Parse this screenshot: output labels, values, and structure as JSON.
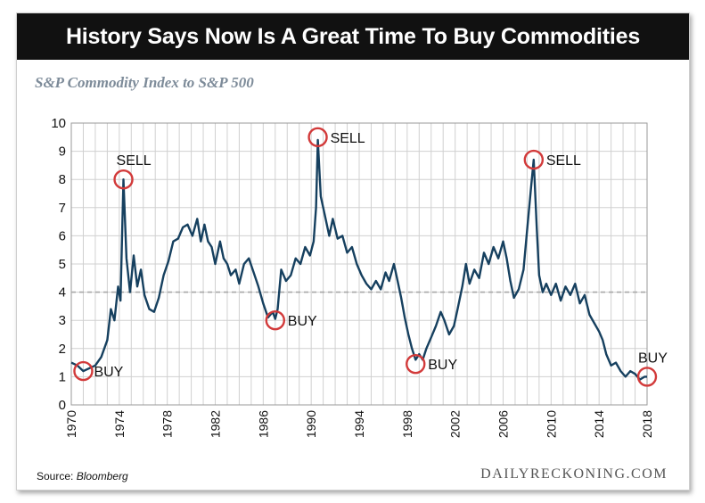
{
  "title": "History Says Now Is A Great Time To Buy Commodities",
  "subtitle": "S&P Commodity Index to S&P 500",
  "source_label": "Source:",
  "source_name": "Bloomberg",
  "brand": "DAILYRECKONING.COM",
  "colors": {
    "line": "#16405f",
    "marker": "#d23a3a",
    "grid": "#d0d0d0",
    "reference": "#a8a8a8",
    "title_bar": "#111111"
  },
  "chart_data": {
    "type": "line",
    "title": "S&P Commodity Index to S&P 500",
    "xlim": [
      1970,
      2018
    ],
    "ylim": [
      0,
      10
    ],
    "x_ticks": [
      1970,
      1974,
      1978,
      1982,
      1986,
      1990,
      1994,
      1998,
      2002,
      2006,
      2010,
      2014,
      2018
    ],
    "y_ticks": [
      0,
      1,
      2,
      3,
      4,
      5,
      6,
      7,
      8,
      9,
      10
    ],
    "grid": true,
    "reference_line": {
      "y": 4,
      "style": "dashed"
    },
    "series": [
      {
        "points": [
          [
            1970.0,
            1.5
          ],
          [
            1970.5,
            1.4
          ],
          [
            1971.0,
            1.2
          ],
          [
            1971.5,
            1.3
          ],
          [
            1972.0,
            1.4
          ],
          [
            1972.5,
            1.7
          ],
          [
            1973.0,
            2.3
          ],
          [
            1973.3,
            3.4
          ],
          [
            1973.6,
            3.0
          ],
          [
            1973.9,
            4.2
          ],
          [
            1974.1,
            3.7
          ],
          [
            1974.35,
            8.0
          ],
          [
            1974.6,
            5.2
          ],
          [
            1974.9,
            4.0
          ],
          [
            1975.2,
            5.3
          ],
          [
            1975.5,
            4.2
          ],
          [
            1975.8,
            4.8
          ],
          [
            1976.1,
            3.9
          ],
          [
            1976.5,
            3.4
          ],
          [
            1976.9,
            3.3
          ],
          [
            1977.3,
            3.8
          ],
          [
            1977.7,
            4.6
          ],
          [
            1978.1,
            5.1
          ],
          [
            1978.5,
            5.8
          ],
          [
            1978.9,
            5.9
          ],
          [
            1979.3,
            6.3
          ],
          [
            1979.7,
            6.4
          ],
          [
            1980.1,
            6.0
          ],
          [
            1980.5,
            6.6
          ],
          [
            1980.8,
            5.8
          ],
          [
            1981.1,
            6.4
          ],
          [
            1981.4,
            5.8
          ],
          [
            1981.7,
            5.6
          ],
          [
            1982.0,
            5.0
          ],
          [
            1982.4,
            5.8
          ],
          [
            1982.7,
            5.2
          ],
          [
            1983.0,
            5.0
          ],
          [
            1983.3,
            4.6
          ],
          [
            1983.7,
            4.8
          ],
          [
            1984.0,
            4.3
          ],
          [
            1984.4,
            5.0
          ],
          [
            1984.8,
            5.2
          ],
          [
            1985.2,
            4.7
          ],
          [
            1985.6,
            4.2
          ],
          [
            1986.0,
            3.6
          ],
          [
            1986.4,
            3.1
          ],
          [
            1986.8,
            3.3
          ],
          [
            1987.0,
            3.05
          ],
          [
            1987.2,
            3.4
          ],
          [
            1987.5,
            4.8
          ],
          [
            1987.9,
            4.4
          ],
          [
            1988.3,
            4.6
          ],
          [
            1988.7,
            5.2
          ],
          [
            1989.1,
            5.0
          ],
          [
            1989.5,
            5.6
          ],
          [
            1989.9,
            5.3
          ],
          [
            1990.2,
            5.8
          ],
          [
            1990.4,
            7.0
          ],
          [
            1990.55,
            9.4
          ],
          [
            1990.8,
            7.4
          ],
          [
            1991.1,
            6.8
          ],
          [
            1991.5,
            6.0
          ],
          [
            1991.8,
            6.6
          ],
          [
            1992.2,
            5.9
          ],
          [
            1992.6,
            6.0
          ],
          [
            1993.0,
            5.4
          ],
          [
            1993.4,
            5.6
          ],
          [
            1993.8,
            5.0
          ],
          [
            1994.2,
            4.6
          ],
          [
            1994.6,
            4.3
          ],
          [
            1995.0,
            4.1
          ],
          [
            1995.4,
            4.4
          ],
          [
            1995.8,
            4.1
          ],
          [
            1996.2,
            4.7
          ],
          [
            1996.5,
            4.4
          ],
          [
            1996.9,
            5.0
          ],
          [
            1997.2,
            4.4
          ],
          [
            1997.5,
            3.8
          ],
          [
            1997.8,
            3.1
          ],
          [
            1998.1,
            2.5
          ],
          [
            1998.4,
            2.0
          ],
          [
            1998.7,
            1.6
          ],
          [
            1999.0,
            1.8
          ],
          [
            1999.3,
            1.6
          ],
          [
            1999.6,
            2.0
          ],
          [
            2000.0,
            2.4
          ],
          [
            2000.4,
            2.8
          ],
          [
            2000.8,
            3.3
          ],
          [
            2001.1,
            3.0
          ],
          [
            2001.5,
            2.5
          ],
          [
            2001.9,
            2.8
          ],
          [
            2002.2,
            3.4
          ],
          [
            2002.6,
            4.2
          ],
          [
            2002.9,
            5.0
          ],
          [
            2003.2,
            4.3
          ],
          [
            2003.6,
            4.8
          ],
          [
            2004.0,
            4.5
          ],
          [
            2004.4,
            5.4
          ],
          [
            2004.8,
            5.0
          ],
          [
            2005.2,
            5.6
          ],
          [
            2005.6,
            5.2
          ],
          [
            2006.0,
            5.8
          ],
          [
            2006.3,
            5.2
          ],
          [
            2006.6,
            4.4
          ],
          [
            2006.9,
            3.8
          ],
          [
            2007.3,
            4.1
          ],
          [
            2007.7,
            4.8
          ],
          [
            2008.0,
            6.2
          ],
          [
            2008.3,
            7.6
          ],
          [
            2008.55,
            8.7
          ],
          [
            2008.8,
            6.3
          ],
          [
            2009.0,
            4.6
          ],
          [
            2009.3,
            4.0
          ],
          [
            2009.6,
            4.3
          ],
          [
            2010.0,
            3.9
          ],
          [
            2010.4,
            4.3
          ],
          [
            2010.8,
            3.7
          ],
          [
            2011.2,
            4.2
          ],
          [
            2011.6,
            3.9
          ],
          [
            2012.0,
            4.3
          ],
          [
            2012.4,
            3.6
          ],
          [
            2012.8,
            3.9
          ],
          [
            2013.2,
            3.2
          ],
          [
            2013.6,
            2.9
          ],
          [
            2014.0,
            2.6
          ],
          [
            2014.3,
            2.3
          ],
          [
            2014.6,
            1.8
          ],
          [
            2015.0,
            1.4
          ],
          [
            2015.4,
            1.5
          ],
          [
            2015.8,
            1.2
          ],
          [
            2016.2,
            1.0
          ],
          [
            2016.6,
            1.2
          ],
          [
            2017.0,
            1.1
          ],
          [
            2017.4,
            0.9
          ],
          [
            2017.8,
            1.0
          ],
          [
            2018.0,
            1.0
          ]
        ]
      }
    ],
    "annotations": [
      {
        "label": "BUY",
        "x": 1971.0,
        "y": 1.2,
        "label_side": "right-below"
      },
      {
        "label": "SELL",
        "x": 1974.35,
        "y": 8.0,
        "label_side": "above"
      },
      {
        "label": "BUY",
        "x": 1987.0,
        "y": 3.0,
        "label_side": "right"
      },
      {
        "label": "SELL",
        "x": 1990.55,
        "y": 9.5,
        "label_side": "right"
      },
      {
        "label": "BUY",
        "x": 1998.7,
        "y": 1.45,
        "label_side": "right"
      },
      {
        "label": "SELL",
        "x": 2008.55,
        "y": 8.7,
        "label_side": "right"
      },
      {
        "label": "BUY",
        "x": 2018.0,
        "y": 1.0,
        "label_side": "above"
      }
    ]
  }
}
